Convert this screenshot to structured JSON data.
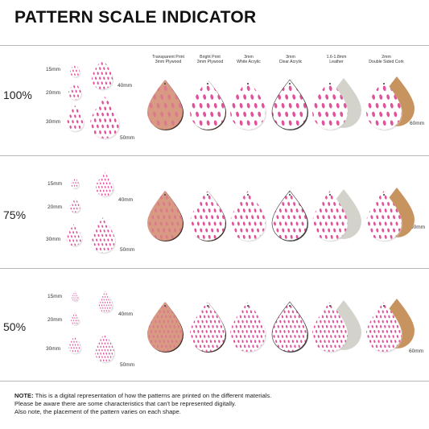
{
  "title": "PATTERN SCALE INDICATOR",
  "materials": [
    {
      "line1": "Transparent Print",
      "line2": "3mm Plywood"
    },
    {
      "line1": "Bright Print",
      "line2": "3mm Plywood"
    },
    {
      "line1": "3mm",
      "line2": "White Acrylic"
    },
    {
      "line1": "3mm",
      "line2": "Clear Acrylic"
    },
    {
      "line1": "1.6-1.8mm",
      "line2": "Leather"
    },
    {
      "line1": "2mm",
      "line2": "Double Sided Cork"
    }
  ],
  "rows": [
    {
      "scale": "100%"
    },
    {
      "scale": "75%"
    },
    {
      "scale": "50%"
    }
  ],
  "size_labels": {
    "s15": "15mm",
    "s20": "20mm",
    "s30": "30mm",
    "s40": "40mm",
    "s50": "50mm",
    "s60": "60mm"
  },
  "note": {
    "label": "NOTE:",
    "line1": "This is a digital representation of how the patterns are printed on the different materials.",
    "line2": "Please be aware there are some characteristics that can't be represented digitally.",
    "line3": "Also note, the placement of the pattern varies on each shape."
  },
  "colors": {
    "pattern": "#e0529c",
    "plywood": "#d89a82",
    "leather": "#d3d3cc",
    "cork": "#c79460",
    "rule": "#b8b8b8"
  }
}
